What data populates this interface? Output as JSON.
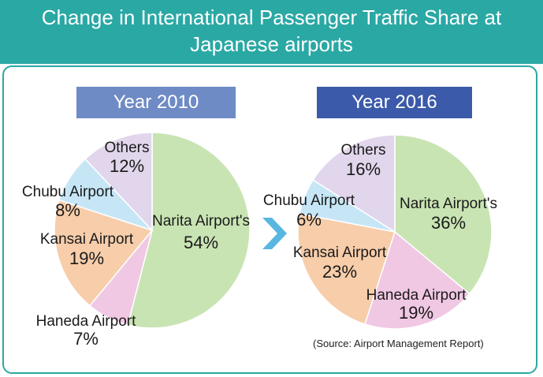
{
  "header": {
    "title_line1": "Change in International Passenger Traffic Share at",
    "title_line2": "Japanese airports",
    "background": "#2aa8a4"
  },
  "source_note": "(Source: Airport Management Report)",
  "colors": {
    "Narita Airport's": "#c9e4b3",
    "Haneda Airport": "#f0c8e3",
    "Kansai Airport": "#f7cdaa",
    "Chubu Airport": "#c6e6f6",
    "Others": "#e1d6eb",
    "arrow": "#58b7e1"
  },
  "chart_data": [
    {
      "type": "pie",
      "title": "Year 2010",
      "title_color": "#6f8bc5",
      "slices": [
        {
          "label": "Narita Airport's",
          "value": 54,
          "display": "54%"
        },
        {
          "label": "Haneda Airport",
          "value": 7,
          "display": "7%"
        },
        {
          "label": "Kansai Airport",
          "value": 19,
          "display": "19%"
        },
        {
          "label": "Chubu Airport",
          "value": 8,
          "display": "8%"
        },
        {
          "label": "Others",
          "value": 12,
          "display": "12%"
        }
      ]
    },
    {
      "type": "pie",
      "title": "Year 2016",
      "title_color": "#3b5aa9",
      "slices": [
        {
          "label": "Narita Airport's",
          "value": 36,
          "display": "36%"
        },
        {
          "label": "Haneda Airport",
          "value": 19,
          "display": "19%"
        },
        {
          "label": "Kansai Airport",
          "value": 23,
          "display": "23%"
        },
        {
          "label": "Chubu Airport",
          "value": 6,
          "display": "6%"
        },
        {
          "label": "Others",
          "value": 16,
          "display": "16%"
        }
      ]
    }
  ]
}
